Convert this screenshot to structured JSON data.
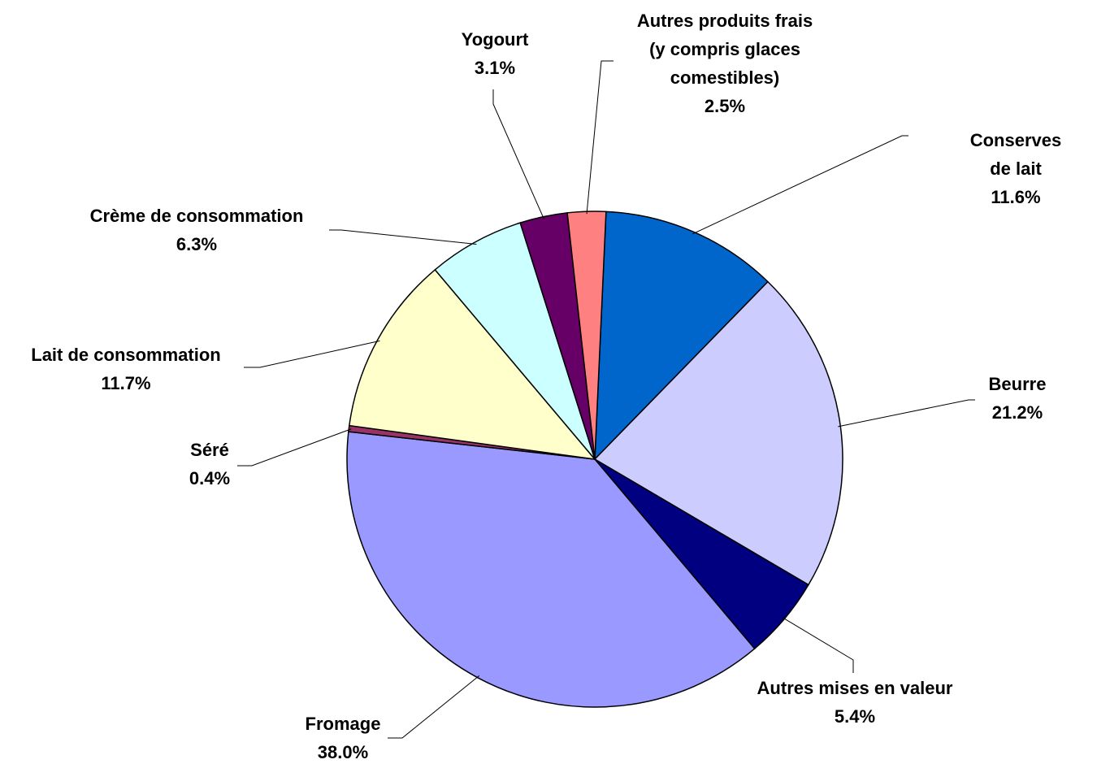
{
  "chart_data": {
    "type": "pie",
    "categories": [
      "Conserves de lait",
      "Beurre",
      "Autres mises en valeur",
      "Fromage",
      "Séré",
      "Lait de consommation",
      "Crème de consommation",
      "Yogourt",
      "Autres produits frais\n(y compris glaces\ncomestibles)"
    ],
    "values": [
      11.6,
      21.2,
      5.4,
      38.0,
      0.4,
      11.7,
      6.3,
      3.1,
      2.5
    ],
    "value_labels": [
      "11.6%",
      "21.2%",
      "5.4%",
      "38.0%",
      "0.4%",
      "11.7%",
      "6.3%",
      "3.1%",
      "2.5%"
    ],
    "colors": [
      "#0066cc",
      "#ccccff",
      "#000080",
      "#9999ff",
      "#993366",
      "#ffffcc",
      "#ccffff",
      "#660066",
      "#ff8080"
    ]
  }
}
